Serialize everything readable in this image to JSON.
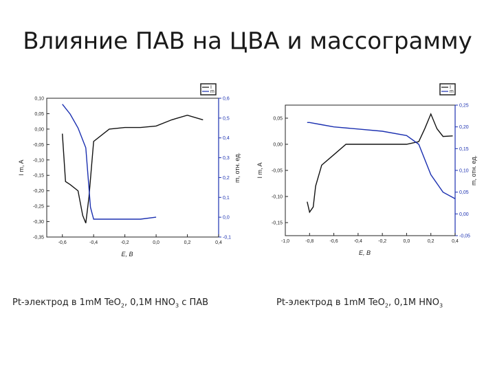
{
  "slide": {
    "title": "Влияние ПАВ на ЦВА и массограмму",
    "captions": [
      {
        "a": "Pt-электрод в 1mM TeO",
        "s1": "2",
        "b": ", 0,1M HNO",
        "s2": "3",
        "c": " с ПАВ"
      },
      {
        "a": "Pt-электрод в 1mM TeO",
        "s1": "2",
        "b": ", 0,1M HNO",
        "s2": "3",
        "c": ""
      }
    ]
  },
  "chart_data": [
    {
      "type": "line",
      "xlabel": "E, B",
      "ylabel": "I_m, A",
      "ylabel_right": "m, отн. ед.",
      "xlim": [
        -0.7,
        0.4
      ],
      "ylim": [
        -0.35,
        0.1
      ],
      "ylim_right": [
        -0.1,
        0.6
      ],
      "xticks": [
        "-0,6",
        "-0,4",
        "-0,2",
        "0,0",
        "0,2",
        "0,4"
      ],
      "yticks": [
        "0,10",
        "0,05",
        "0,00",
        "-0,05",
        "-0,10",
        "-0,15",
        "-0,20",
        "-0,25",
        "-0,30",
        "-0,35"
      ],
      "yticks_right": [
        "0,6",
        "0,5",
        "0,4",
        "0,3",
        "0,2",
        "0,1",
        "0,0",
        "-0,1"
      ],
      "legend": [
        "I",
        "m"
      ],
      "colors": {
        "current": "#111111",
        "mass": "#1a2fb0"
      },
      "series": [
        {
          "name": "I",
          "axis": "left",
          "x": [
            -0.6,
            -0.58,
            -0.55,
            -0.5,
            -0.47,
            -0.45,
            -0.43,
            -0.4,
            -0.3,
            -0.2,
            -0.1,
            0.0,
            0.1,
            0.2,
            0.3
          ],
          "y": [
            -0.015,
            -0.17,
            -0.18,
            -0.2,
            -0.28,
            -0.305,
            -0.22,
            -0.04,
            0.0,
            0.005,
            0.005,
            0.01,
            0.03,
            0.045,
            0.03
          ]
        },
        {
          "name": "m",
          "axis": "right",
          "x": [
            -0.6,
            -0.55,
            -0.5,
            -0.45,
            -0.42,
            -0.4,
            -0.35,
            -0.3,
            -0.2,
            -0.1,
            0.0
          ],
          "y": [
            0.57,
            0.52,
            0.45,
            0.35,
            0.05,
            -0.01,
            -0.01,
            -0.01,
            -0.01,
            -0.01,
            0.0
          ]
        }
      ]
    },
    {
      "type": "line",
      "xlabel": "E, B",
      "ylabel": "I_m, A",
      "ylabel_right": "m, отн. ед.",
      "xlim": [
        -1.0,
        0.4
      ],
      "ylim": [
        -0.175,
        0.075
      ],
      "ylim_right": [
        -0.05,
        0.25
      ],
      "xticks": [
        "-1,0",
        "-0,8",
        "-0,6",
        "-0,4",
        "-0,2",
        "0,0",
        "0,2",
        "0,4"
      ],
      "yticks": [
        "0,05",
        "0,00",
        "-0,05",
        "-0,10",
        "-0,15"
      ],
      "yticks_right": [
        "0,25",
        "0,20",
        "0,15",
        "0,10",
        "0,05",
        "0,00",
        "-0,05"
      ],
      "legend": [
        "I",
        "m"
      ],
      "colors": {
        "current": "#111111",
        "mass": "#1a2fb0"
      },
      "series": [
        {
          "name": "I",
          "axis": "left",
          "x": [
            -0.82,
            -0.8,
            -0.77,
            -0.75,
            -0.7,
            -0.6,
            -0.5,
            -0.3,
            -0.1,
            0.0,
            0.1,
            0.15,
            0.2,
            0.25,
            0.3,
            0.38
          ],
          "y": [
            -0.11,
            -0.13,
            -0.12,
            -0.08,
            -0.04,
            -0.02,
            0.0,
            0.0,
            0.0,
            0.0,
            0.005,
            0.03,
            0.058,
            0.03,
            0.015,
            0.016
          ]
        },
        {
          "name": "m",
          "axis": "right",
          "x": [
            -0.82,
            -0.8,
            -0.7,
            -0.6,
            -0.4,
            -0.2,
            0.0,
            0.1,
            0.2,
            0.3,
            0.4
          ],
          "y": [
            0.21,
            0.21,
            0.205,
            0.2,
            0.195,
            0.19,
            0.18,
            0.16,
            0.09,
            0.05,
            0.035
          ]
        }
      ]
    }
  ]
}
